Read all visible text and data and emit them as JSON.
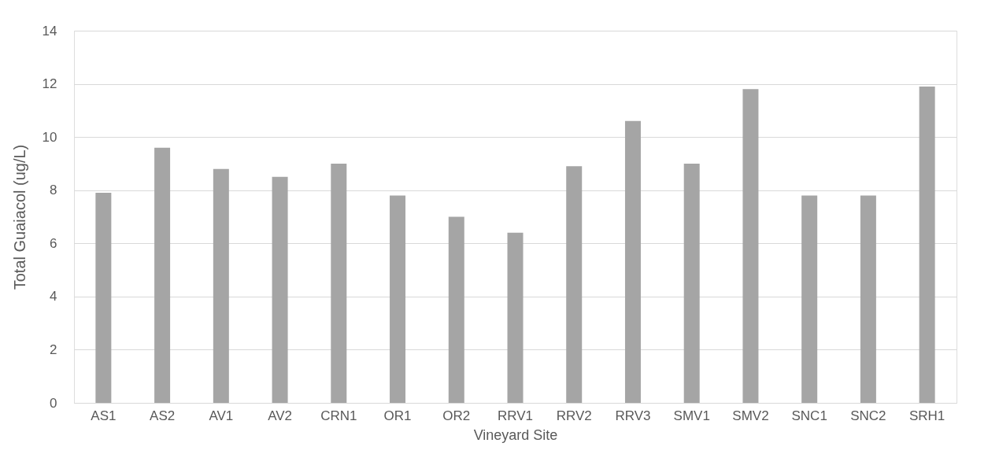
{
  "chart_data": {
    "type": "bar",
    "xlabel": "Vineyard Site",
    "ylabel": "Total Guaiacol (ug/L)",
    "categories": [
      "AS1",
      "AS2",
      "AV1",
      "AV2",
      "CRN1",
      "OR1",
      "OR2",
      "RRV1",
      "RRV2",
      "RRV3",
      "SMV1",
      "SMV2",
      "SNC1",
      "SNC2",
      "SRH1"
    ],
    "values": [
      7.9,
      9.6,
      8.8,
      8.5,
      9.0,
      7.8,
      7.0,
      6.4,
      8.9,
      10.6,
      9.0,
      11.8,
      7.8,
      7.8,
      11.9
    ],
    "color": "#a5a5a5",
    "ylim": [
      0,
      14
    ],
    "yticks": [
      0,
      2,
      4,
      6,
      8,
      10,
      12,
      14
    ],
    "grid": "y"
  }
}
